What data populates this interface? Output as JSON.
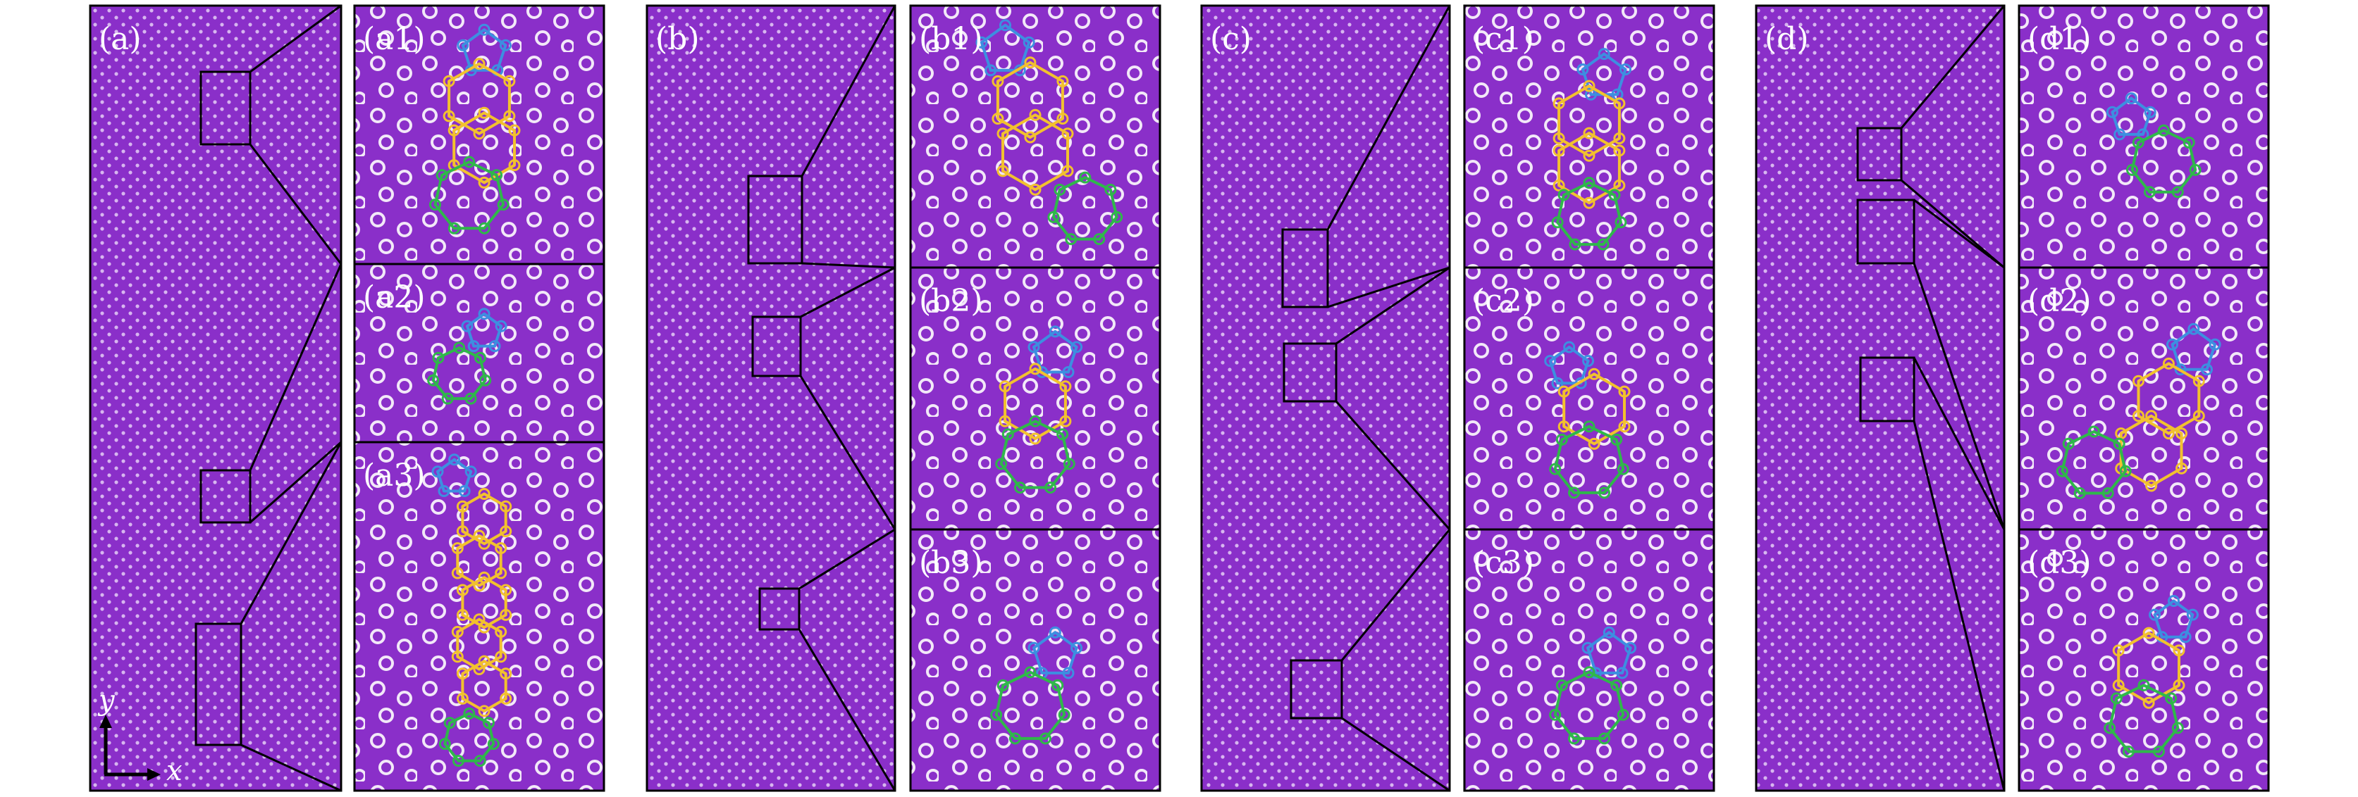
{
  "figure": {
    "colors": {
      "background": "#8a2fc9",
      "dot": "#f2e8f8",
      "frame": "#000000",
      "ring_blue": "#3d8fe0",
      "ring_yellow": "#f2c12e",
      "ring_green": "#2fb84a"
    },
    "axis": {
      "y_label": "y",
      "x_label": "x"
    },
    "groups": [
      {
        "label": "(a)",
        "zooms": [
          {
            "label": "(a1)",
            "rings": [
              {
                "color": "blue",
                "cx": 0.52,
                "cy": 0.18,
                "r": 0.09,
                "n": 5
              },
              {
                "color": "yellow",
                "cx": 0.5,
                "cy": 0.36,
                "r": 0.14,
                "n": 6
              },
              {
                "color": "yellow",
                "cx": 0.52,
                "cy": 0.55,
                "r": 0.14,
                "n": 6
              },
              {
                "color": "green",
                "cx": 0.46,
                "cy": 0.74,
                "r": 0.14,
                "n": 7
              }
            ]
          },
          {
            "label": "(a2)",
            "rings": [
              {
                "color": "blue",
                "cx": 0.52,
                "cy": 0.38,
                "r": 0.1,
                "n": 5
              },
              {
                "color": "green",
                "cx": 0.42,
                "cy": 0.62,
                "r": 0.15,
                "n": 7
              }
            ]
          },
          {
            "label": "(a3)",
            "rings": [
              {
                "color": "blue",
                "cx": 0.4,
                "cy": 0.1,
                "r": 0.07,
                "n": 5
              },
              {
                "color": "yellow",
                "cx": 0.52,
                "cy": 0.22,
                "r": 0.1,
                "n": 6
              },
              {
                "color": "yellow",
                "cx": 0.5,
                "cy": 0.34,
                "r": 0.1,
                "n": 6
              },
              {
                "color": "yellow",
                "cx": 0.52,
                "cy": 0.46,
                "r": 0.1,
                "n": 6
              },
              {
                "color": "yellow",
                "cx": 0.5,
                "cy": 0.58,
                "r": 0.1,
                "n": 6
              },
              {
                "color": "yellow",
                "cx": 0.52,
                "cy": 0.7,
                "r": 0.1,
                "n": 6
              },
              {
                "color": "green",
                "cx": 0.46,
                "cy": 0.85,
                "r": 0.1,
                "n": 7
              }
            ]
          }
        ]
      },
      {
        "label": "(b)",
        "zooms": [
          {
            "label": "(b1)",
            "rings": [
              {
                "color": "blue",
                "cx": 0.38,
                "cy": 0.17,
                "r": 0.1,
                "n": 5
              },
              {
                "color": "yellow",
                "cx": 0.48,
                "cy": 0.36,
                "r": 0.15,
                "n": 6
              },
              {
                "color": "yellow",
                "cx": 0.5,
                "cy": 0.56,
                "r": 0.15,
                "n": 6
              },
              {
                "color": "green",
                "cx": 0.7,
                "cy": 0.78,
                "r": 0.13,
                "n": 7
              }
            ]
          },
          {
            "label": "(b2)",
            "rings": [
              {
                "color": "blue",
                "cx": 0.58,
                "cy": 0.33,
                "r": 0.09,
                "n": 5
              },
              {
                "color": "yellow",
                "cx": 0.5,
                "cy": 0.52,
                "r": 0.14,
                "n": 6
              },
              {
                "color": "green",
                "cx": 0.5,
                "cy": 0.72,
                "r": 0.14,
                "n": 7
              }
            ]
          },
          {
            "label": "(b3)",
            "rings": [
              {
                "color": "blue",
                "cx": 0.58,
                "cy": 0.48,
                "r": 0.09,
                "n": 5
              },
              {
                "color": "green",
                "cx": 0.48,
                "cy": 0.68,
                "r": 0.14,
                "n": 7
              }
            ]
          }
        ]
      },
      {
        "label": "(c)",
        "zooms": [
          {
            "label": "(c1)",
            "rings": [
              {
                "color": "blue",
                "cx": 0.56,
                "cy": 0.27,
                "r": 0.09,
                "n": 5
              },
              {
                "color": "yellow",
                "cx": 0.5,
                "cy": 0.44,
                "r": 0.14,
                "n": 6
              },
              {
                "color": "yellow",
                "cx": 0.5,
                "cy": 0.62,
                "r": 0.14,
                "n": 6
              },
              {
                "color": "green",
                "cx": 0.5,
                "cy": 0.8,
                "r": 0.13,
                "n": 7
              }
            ]
          },
          {
            "label": "(c2)",
            "rings": [
              {
                "color": "blue",
                "cx": 0.42,
                "cy": 0.38,
                "r": 0.08,
                "n": 5
              },
              {
                "color": "yellow",
                "cx": 0.52,
                "cy": 0.54,
                "r": 0.14,
                "n": 6
              },
              {
                "color": "green",
                "cx": 0.5,
                "cy": 0.74,
                "r": 0.14,
                "n": 7
              }
            ]
          },
          {
            "label": "(c3)",
            "rings": [
              {
                "color": "blue",
                "cx": 0.58,
                "cy": 0.48,
                "r": 0.09,
                "n": 5
              },
              {
                "color": "green",
                "cx": 0.5,
                "cy": 0.68,
                "r": 0.14,
                "n": 7
              }
            ]
          }
        ]
      },
      {
        "label": "(d)",
        "zooms": [
          {
            "label": "(d1)",
            "rings": [
              {
                "color": "blue",
                "cx": 0.45,
                "cy": 0.43,
                "r": 0.08,
                "n": 5
              },
              {
                "color": "green",
                "cx": 0.58,
                "cy": 0.6,
                "r": 0.13,
                "n": 7
              }
            ]
          },
          {
            "label": "(d2)",
            "rings": [
              {
                "color": "blue",
                "cx": 0.7,
                "cy": 0.32,
                "r": 0.09,
                "n": 5
              },
              {
                "color": "yellow",
                "cx": 0.6,
                "cy": 0.5,
                "r": 0.14,
                "n": 6
              },
              {
                "color": "yellow",
                "cx": 0.53,
                "cy": 0.7,
                "r": 0.14,
                "n": 6
              },
              {
                "color": "green",
                "cx": 0.3,
                "cy": 0.75,
                "r": 0.13,
                "n": 7
              }
            ]
          },
          {
            "label": "(d3)",
            "rings": [
              {
                "color": "blue",
                "cx": 0.62,
                "cy": 0.35,
                "r": 0.08,
                "n": 5
              },
              {
                "color": "yellow",
                "cx": 0.52,
                "cy": 0.53,
                "r": 0.14,
                "n": 6
              },
              {
                "color": "green",
                "cx": 0.5,
                "cy": 0.73,
                "r": 0.14,
                "n": 7
              }
            ]
          }
        ]
      }
    ]
  }
}
